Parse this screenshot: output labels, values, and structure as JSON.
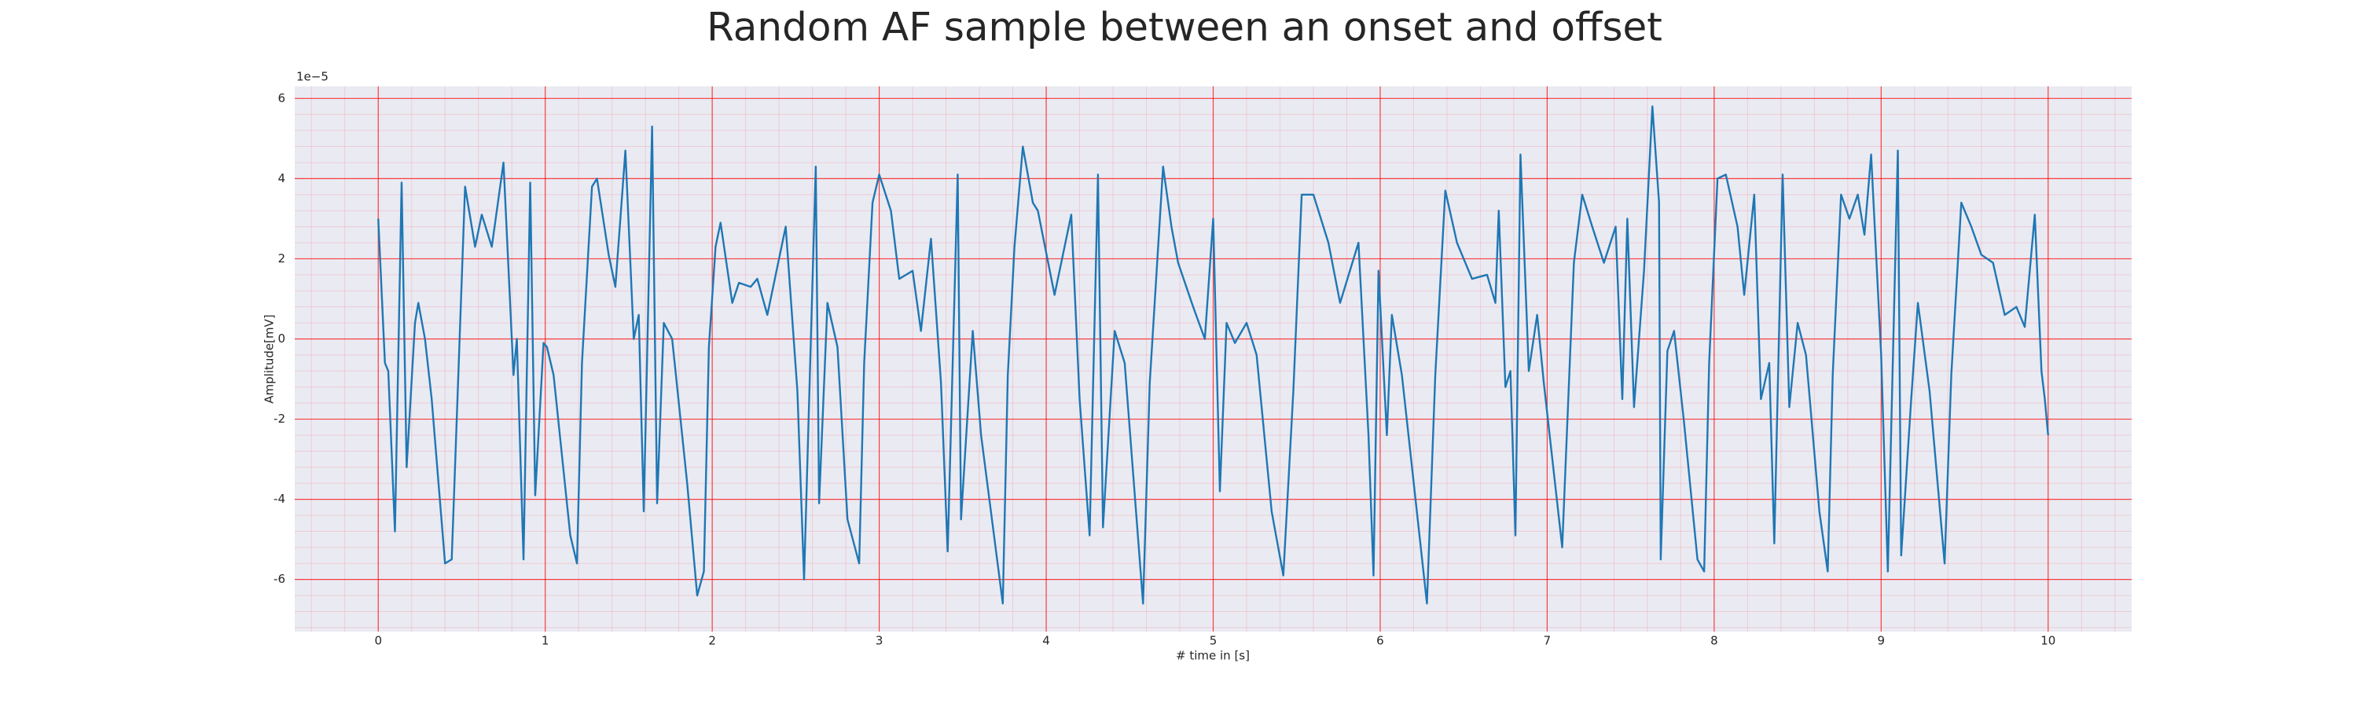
{
  "chart_data": {
    "type": "line",
    "title": "Random AF sample between an onset and offset",
    "x_label": "# time in [s]",
    "y_label": "Amplitude[mV]",
    "y_offset_label": "1e−5",
    "xlim": [
      -0.5,
      10.5
    ],
    "ylim": [
      -7.3,
      6.3
    ],
    "xticks": [
      0,
      1,
      2,
      3,
      4,
      5,
      6,
      7,
      8,
      9,
      10
    ],
    "yticks": [
      -6,
      -4,
      -2,
      0,
      2,
      4,
      6
    ],
    "grid": true,
    "minor_grid": true,
    "grid_color": "#ff0000",
    "background": "#eaeaf2",
    "x": [
      0,
      0.04,
      0.06,
      0.1,
      0.14,
      0.17,
      0.22,
      0.24,
      0.28,
      0.32,
      0.4,
      0.44,
      0.52,
      0.58,
      0.62,
      0.68,
      0.75,
      0.81,
      0.83,
      0.87,
      0.91,
      0.94,
      0.99,
      1.01,
      1.05,
      1.15,
      1.19,
      1.22,
      1.28,
      1.31,
      1.38,
      1.42,
      1.48,
      1.53,
      1.56,
      1.59,
      1.64,
      1.67,
      1.71,
      1.76,
      1.85,
      1.91,
      1.95,
      1.98,
      2.02,
      2.05,
      2.12,
      2.16,
      2.23,
      2.27,
      2.33,
      2.44,
      2.51,
      2.55,
      2.62,
      2.64,
      2.69,
      2.75,
      2.81,
      2.88,
      2.91,
      2.96,
      3.0,
      3.07,
      3.12,
      3.2,
      3.25,
      3.31,
      3.37,
      3.41,
      3.47,
      3.49,
      3.56,
      3.61,
      3.74,
      3.77,
      3.81,
      3.86,
      3.92,
      3.95,
      4.05,
      4.15,
      4.2,
      4.26,
      4.31,
      4.34,
      4.41,
      4.47,
      4.58,
      4.62,
      4.7,
      4.75,
      4.79,
      4.88,
      4.95,
      5.0,
      5.04,
      5.08,
      5.13,
      5.2,
      5.26,
      5.35,
      5.42,
      5.48,
      5.53,
      5.6,
      5.69,
      5.76,
      5.87,
      5.93,
      5.96,
      5.99,
      6.04,
      6.07,
      6.13,
      6.28,
      6.33,
      6.39,
      6.46,
      6.55,
      6.64,
      6.69,
      6.71,
      6.75,
      6.78,
      6.81,
      6.84,
      6.89,
      6.94,
      6.98,
      7.09,
      7.16,
      7.21,
      7.27,
      7.34,
      7.41,
      7.45,
      7.48,
      7.52,
      7.58,
      7.63,
      7.67,
      7.68,
      7.72,
      7.76,
      7.82,
      7.9,
      7.94,
      7.97,
      8.02,
      8.07,
      8.14,
      8.18,
      8.24,
      8.28,
      8.33,
      8.36,
      8.41,
      8.45,
      8.5,
      8.55,
      8.63,
      8.68,
      8.71,
      8.76,
      8.81,
      8.86,
      8.9,
      8.94,
      9.0,
      9.04,
      9.1,
      9.12,
      9.18,
      9.22,
      9.29,
      9.38,
      9.42,
      9.48,
      9.54,
      9.6,
      9.67,
      9.74,
      9.81,
      9.86,
      9.92,
      9.96,
      9.98,
      10.0
    ],
    "values": [
      3.0,
      -0.6,
      -0.8,
      -4.8,
      3.9,
      -3.2,
      0.4,
      0.9,
      0,
      -1.5,
      -5.6,
      -5.5,
      3.8,
      2.3,
      3.1,
      2.3,
      4.4,
      -0.9,
      0,
      -5.5,
      3.9,
      -3.9,
      -0.1,
      -0.2,
      -0.9,
      -4.9,
      -5.6,
      -0.6,
      3.8,
      4.0,
      2.1,
      1.3,
      4.7,
      0,
      0.6,
      -4.3,
      5.3,
      -4.1,
      0.4,
      0,
      -3.6,
      -6.4,
      -5.8,
      -0.2,
      2.3,
      2.9,
      0.9,
      1.4,
      1.3,
      1.5,
      0.6,
      2.8,
      -1.3,
      -6.0,
      4.3,
      -4.1,
      0.9,
      -0.2,
      -4.5,
      -5.6,
      -0.6,
      3.4,
      4.1,
      3.2,
      1.5,
      1.7,
      0.2,
      2.5,
      -1.1,
      -5.3,
      4.1,
      -4.5,
      0.2,
      -2.4,
      -6.6,
      -0.9,
      2.3,
      4.8,
      3.4,
      3.2,
      1.1,
      3.1,
      -1.5,
      -4.9,
      4.1,
      -4.7,
      0.2,
      -0.6,
      -6.6,
      -1.1,
      4.3,
      2.8,
      1.9,
      0.8,
      0,
      3.0,
      -3.8,
      0.4,
      -0.1,
      0.4,
      -0.4,
      -4.3,
      -5.9,
      -1.3,
      3.6,
      3.6,
      2.4,
      0.9,
      2.4,
      -2.4,
      -5.9,
      1.7,
      -2.4,
      0.6,
      -0.9,
      -6.6,
      -0.9,
      3.7,
      2.4,
      1.5,
      1.6,
      0.9,
      3.2,
      -1.2,
      -0.8,
      -4.9,
      4.6,
      -0.8,
      0.6,
      -1.1,
      -5.2,
      1.9,
      3.6,
      2.8,
      1.9,
      2.8,
      -1.5,
      3.0,
      -1.7,
      1.7,
      5.8,
      3.4,
      -5.5,
      -0.3,
      0.2,
      -2.1,
      -5.5,
      -5.8,
      -0.6,
      4.0,
      4.1,
      2.8,
      1.1,
      3.6,
      -1.5,
      -0.6,
      -5.1,
      4.1,
      -1.7,
      0.4,
      -0.4,
      -4.3,
      -5.8,
      -0.9,
      3.6,
      3.0,
      3.6,
      2.6,
      4.6,
      -0.4,
      -5.8,
      4.7,
      -5.4,
      -1.5,
      0.9,
      -1.3,
      -5.6,
      -0.9,
      3.4,
      2.8,
      2.1,
      1.9,
      0.6,
      0.8,
      0.3,
      3.1,
      -0.8,
      -1.5,
      -2.4
    ],
    "color": "#1f77b4"
  }
}
